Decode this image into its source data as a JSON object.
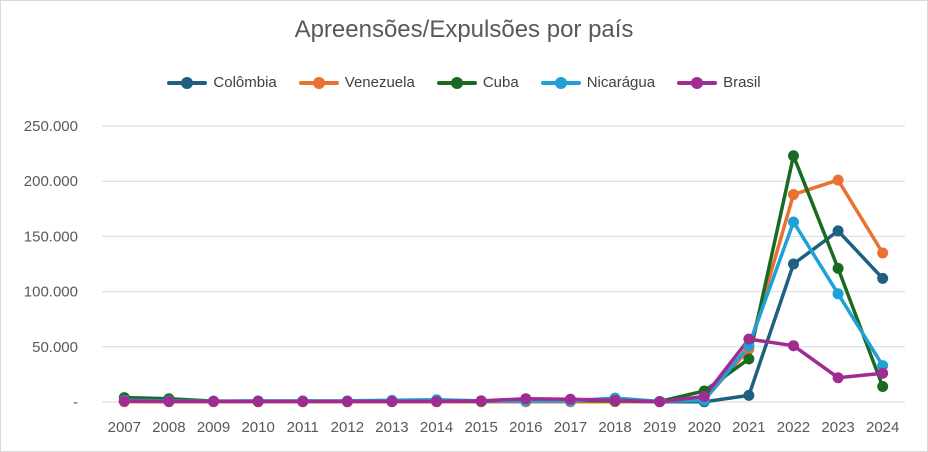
{
  "chart_data": {
    "type": "line",
    "title": "Apreensões/Expulsões por país",
    "xlabel": "",
    "ylabel": "",
    "x": [
      "2007",
      "2008",
      "2009",
      "2010",
      "2011",
      "2012",
      "2013",
      "2014",
      "2015",
      "2016",
      "2017",
      "2018",
      "2019",
      "2020",
      "2021",
      "2022",
      "2023",
      "2024"
    ],
    "ylim": [
      0,
      250000
    ],
    "yticks": [
      "-",
      "50.000",
      "100.000",
      "150.000",
      "200.000",
      "250.000"
    ],
    "ytick_values": [
      0,
      50000,
      100000,
      150000,
      200000,
      250000
    ],
    "grid": true,
    "legend_position": "top",
    "series": [
      {
        "name": "Colômbia",
        "color": "#1f5f82",
        "values": [
          1000,
          800,
          500,
          300,
          300,
          300,
          300,
          500,
          500,
          500,
          300,
          500,
          300,
          200,
          6000,
          125000,
          155000,
          112000
        ]
      },
      {
        "name": "Venezuela",
        "color": "#e97132",
        "values": [
          200,
          200,
          200,
          200,
          200,
          200,
          200,
          200,
          200,
          200,
          200,
          300,
          500,
          2000,
          48000,
          188000,
          201000,
          135000
        ]
      },
      {
        "name": "Cuba",
        "color": "#196b24",
        "values": [
          4000,
          3000,
          800,
          600,
          600,
          600,
          600,
          600,
          700,
          1500,
          1500,
          1000,
          500,
          10000,
          39000,
          223000,
          121000,
          14000
        ]
      },
      {
        "name": "Nicarágua",
        "color": "#1ea1d6",
        "values": [
          1500,
          1000,
          800,
          1000,
          1000,
          1000,
          1500,
          2000,
          1000,
          1000,
          1000,
          3500,
          500,
          1500,
          51000,
          163000,
          98000,
          33000
        ]
      },
      {
        "name": "Brasil",
        "color": "#a02b93",
        "values": [
          800,
          500,
          500,
          500,
          500,
          500,
          500,
          500,
          1000,
          3000,
          2500,
          1500,
          200,
          5000,
          57000,
          51000,
          22000,
          26000
        ]
      }
    ]
  }
}
